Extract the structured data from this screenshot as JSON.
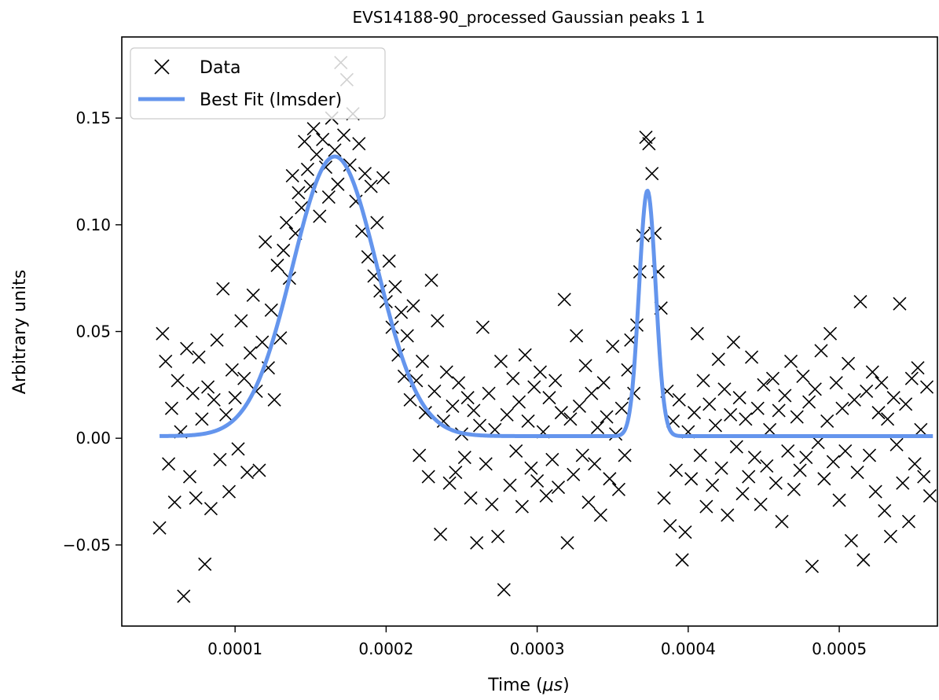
{
  "chart_data": {
    "type": "scatter",
    "title": "EVS14188-90_processed Gaussian peaks 1 1",
    "xlabel_text": "Time (",
    "xlabel_mu": "μs",
    "xlabel_close": ")",
    "ylabel": "Arbitrary units",
    "xlim": [
      2.5e-05,
      0.000565
    ],
    "ylim": [
      -0.088,
      0.188
    ],
    "x_ticks": [
      0.0001,
      0.0002,
      0.0003,
      0.0004,
      0.0005
    ],
    "x_tick_labels": [
      "0.0001",
      "0.0002",
      "0.0003",
      "0.0004",
      "0.0005"
    ],
    "y_ticks": [
      -0.05,
      0.0,
      0.05,
      0.1,
      0.15
    ],
    "y_tick_labels": [
      "−0.05",
      "0.00",
      "0.05",
      "0.10",
      "0.15"
    ],
    "grid": false,
    "legend": {
      "placement": "top-left",
      "entries": [
        {
          "label": "Data",
          "marker": "x",
          "color": "#000000"
        },
        {
          "label": "Best Fit (lmsder)",
          "marker": "line",
          "color": "#6495ED"
        }
      ]
    },
    "colors": {
      "data": "#000000",
      "fit": "#6495ED"
    },
    "fit_model": {
      "x_range": [
        5e-05,
        0.000562
      ],
      "baseline": 0.001,
      "peaks": [
        {
          "amplitude": 0.131,
          "center": 0.000166,
          "sigma": 2.8e-05
        },
        {
          "amplitude": 0.115,
          "center": 0.000373,
          "sigma": 5.5e-06
        }
      ]
    },
    "series": [
      {
        "name": "Data",
        "marker": "x",
        "points": [
          [
            5e-05,
            -0.042
          ],
          [
            5.2e-05,
            0.049
          ],
          [
            5.4e-05,
            0.036
          ],
          [
            5.6e-05,
            -0.012
          ],
          [
            5.8e-05,
            0.014
          ],
          [
            6e-05,
            -0.03
          ],
          [
            6.2e-05,
            0.027
          ],
          [
            6.4e-05,
            0.003
          ],
          [
            6.6e-05,
            -0.074
          ],
          [
            6.8e-05,
            0.042
          ],
          [
            7e-05,
            -0.018
          ],
          [
            7.2e-05,
            0.021
          ],
          [
            7.4e-05,
            -0.028
          ],
          [
            7.6e-05,
            0.038
          ],
          [
            7.8e-05,
            0.009
          ],
          [
            8e-05,
            -0.059
          ],
          [
            8.2e-05,
            0.024
          ],
          [
            8.4e-05,
            -0.033
          ],
          [
            8.6e-05,
            0.018
          ],
          [
            8.8e-05,
            0.046
          ],
          [
            9e-05,
            -0.01
          ],
          [
            9.2e-05,
            0.07
          ],
          [
            9.4e-05,
            0.011
          ],
          [
            9.6e-05,
            -0.025
          ],
          [
            9.8e-05,
            0.032
          ],
          [
            0.0001,
            0.019
          ],
          [
            0.000102,
            -0.005
          ],
          [
            0.000104,
            0.055
          ],
          [
            0.000106,
            0.028
          ],
          [
            0.000108,
            -0.016
          ],
          [
            0.00011,
            0.04
          ],
          [
            0.000112,
            0.067
          ],
          [
            0.000114,
            0.022
          ],
          [
            0.000116,
            -0.015
          ],
          [
            0.000118,
            0.045
          ],
          [
            0.00012,
            0.092
          ],
          [
            0.000122,
            0.033
          ],
          [
            0.000124,
            0.06
          ],
          [
            0.000126,
            0.018
          ],
          [
            0.000128,
            0.081
          ],
          [
            0.00013,
            0.047
          ],
          [
            0.000132,
            0.088
          ],
          [
            0.000134,
            0.101
          ],
          [
            0.000136,
            0.075
          ],
          [
            0.000138,
            0.123
          ],
          [
            0.00014,
            0.096
          ],
          [
            0.000142,
            0.115
          ],
          [
            0.000144,
            0.108
          ],
          [
            0.000146,
            0.139
          ],
          [
            0.000148,
            0.126
          ],
          [
            0.00015,
            0.118
          ],
          [
            0.000152,
            0.145
          ],
          [
            0.000154,
            0.133
          ],
          [
            0.000156,
            0.104
          ],
          [
            0.000158,
            0.14
          ],
          [
            0.00016,
            0.127
          ],
          [
            0.000162,
            0.113
          ],
          [
            0.000164,
            0.15
          ],
          [
            0.000166,
            0.135
          ],
          [
            0.000168,
            0.119
          ],
          [
            0.00017,
            0.176
          ],
          [
            0.000172,
            0.142
          ],
          [
            0.000174,
            0.168
          ],
          [
            0.000176,
            0.128
          ],
          [
            0.000178,
            0.152
          ],
          [
            0.00018,
            0.111
          ],
          [
            0.000182,
            0.138
          ],
          [
            0.000184,
            0.097
          ],
          [
            0.000186,
            0.124
          ],
          [
            0.000188,
            0.085
          ],
          [
            0.00019,
            0.118
          ],
          [
            0.000192,
            0.076
          ],
          [
            0.000194,
            0.101
          ],
          [
            0.000196,
            0.069
          ],
          [
            0.000198,
            0.122
          ],
          [
            0.0002,
            0.064
          ],
          [
            0.000202,
            0.083
          ],
          [
            0.000204,
            0.052
          ],
          [
            0.000206,
            0.071
          ],
          [
            0.000208,
            0.039
          ],
          [
            0.00021,
            0.059
          ],
          [
            0.000212,
            0.029
          ],
          [
            0.000214,
            0.048
          ],
          [
            0.000216,
            0.018
          ],
          [
            0.000218,
            0.062
          ],
          [
            0.00022,
            0.027
          ],
          [
            0.000222,
            -0.008
          ],
          [
            0.000224,
            0.036
          ],
          [
            0.000226,
            0.012
          ],
          [
            0.000228,
            -0.018
          ],
          [
            0.00023,
            0.074
          ],
          [
            0.000232,
            0.022
          ],
          [
            0.000234,
            0.055
          ],
          [
            0.000236,
            -0.045
          ],
          [
            0.000238,
            0.008
          ],
          [
            0.00024,
            0.031
          ],
          [
            0.000242,
            -0.021
          ],
          [
            0.000244,
            0.015
          ],
          [
            0.000246,
            -0.016
          ],
          [
            0.000248,
            0.026
          ],
          [
            0.00025,
            0.002
          ],
          [
            0.000252,
            -0.009
          ],
          [
            0.000254,
            0.019
          ],
          [
            0.000256,
            -0.028
          ],
          [
            0.000258,
            0.013
          ],
          [
            0.00026,
            -0.049
          ],
          [
            0.000262,
            0.006
          ],
          [
            0.000264,
            0.052
          ],
          [
            0.000266,
            -0.012
          ],
          [
            0.000268,
            0.021
          ],
          [
            0.00027,
            -0.031
          ],
          [
            0.000272,
            0.004
          ],
          [
            0.000274,
            -0.046
          ],
          [
            0.000276,
            0.036
          ],
          [
            0.000278,
            -0.071
          ],
          [
            0.00028,
            0.011
          ],
          [
            0.000282,
            -0.022
          ],
          [
            0.000284,
            0.028
          ],
          [
            0.000286,
            -0.006
          ],
          [
            0.000288,
            0.017
          ],
          [
            0.00029,
            -0.032
          ],
          [
            0.000292,
            0.039
          ],
          [
            0.000294,
            0.008
          ],
          [
            0.000296,
            -0.014
          ],
          [
            0.000298,
            0.024
          ],
          [
            0.0003,
            -0.02
          ],
          [
            0.000302,
            0.031
          ],
          [
            0.000304,
            0.003
          ],
          [
            0.000306,
            -0.027
          ],
          [
            0.000308,
            0.019
          ],
          [
            0.00031,
            -0.01
          ],
          [
            0.000312,
            0.027
          ],
          [
            0.000314,
            -0.023
          ],
          [
            0.000316,
            0.012
          ],
          [
            0.000318,
            0.065
          ],
          [
            0.00032,
            -0.049
          ],
          [
            0.000322,
            0.009
          ],
          [
            0.000324,
            -0.017
          ],
          [
            0.000326,
            0.048
          ],
          [
            0.000328,
            0.015
          ],
          [
            0.00033,
            -0.008
          ],
          [
            0.000332,
            0.034
          ],
          [
            0.000334,
            -0.03
          ],
          [
            0.000336,
            0.021
          ],
          [
            0.000338,
            -0.012
          ],
          [
            0.00034,
            0.005
          ],
          [
            0.000342,
            -0.036
          ],
          [
            0.000344,
            0.026
          ],
          [
            0.000346,
            0.01
          ],
          [
            0.000348,
            -0.019
          ],
          [
            0.00035,
            0.043
          ],
          [
            0.000352,
            0.002
          ],
          [
            0.000354,
            -0.024
          ],
          [
            0.000356,
            0.014
          ],
          [
            0.000358,
            -0.008
          ],
          [
            0.00036,
            0.032
          ],
          [
            0.000362,
            0.046
          ],
          [
            0.000364,
            0.021
          ],
          [
            0.000366,
            0.053
          ],
          [
            0.000368,
            0.078
          ],
          [
            0.00037,
            0.095
          ],
          [
            0.000372,
            0.141
          ],
          [
            0.000374,
            0.138
          ],
          [
            0.000376,
            0.124
          ],
          [
            0.000378,
            0.096
          ],
          [
            0.00038,
            0.078
          ],
          [
            0.000382,
            0.061
          ],
          [
            0.000384,
            -0.028
          ],
          [
            0.000386,
            0.022
          ],
          [
            0.000388,
            -0.041
          ],
          [
            0.00039,
            0.008
          ],
          [
            0.000392,
            -0.015
          ],
          [
            0.000394,
            0.018
          ],
          [
            0.000396,
            -0.057
          ],
          [
            0.000398,
            -0.044
          ],
          [
            0.0004,
            0.003
          ],
          [
            0.000402,
            -0.019
          ],
          [
            0.000404,
            0.012
          ],
          [
            0.000406,
            0.049
          ],
          [
            0.000408,
            -0.008
          ],
          [
            0.00041,
            0.027
          ],
          [
            0.000412,
            -0.032
          ],
          [
            0.000414,
            0.016
          ],
          [
            0.000416,
            -0.022
          ],
          [
            0.000418,
            0.006
          ],
          [
            0.00042,
            0.037
          ],
          [
            0.000422,
            -0.014
          ],
          [
            0.000424,
            0.023
          ],
          [
            0.000426,
            -0.036
          ],
          [
            0.000428,
            0.011
          ],
          [
            0.00043,
            0.045
          ],
          [
            0.000432,
            -0.004
          ],
          [
            0.000434,
            0.019
          ],
          [
            0.000436,
            -0.026
          ],
          [
            0.000438,
            0.009
          ],
          [
            0.00044,
            -0.018
          ],
          [
            0.000442,
            0.038
          ],
          [
            0.000444,
            -0.009
          ],
          [
            0.000446,
            0.014
          ],
          [
            0.000448,
            -0.031
          ],
          [
            0.00045,
            0.025
          ],
          [
            0.000452,
            -0.013
          ],
          [
            0.000454,
            0.004
          ],
          [
            0.000456,
            0.028
          ],
          [
            0.000458,
            -0.021
          ],
          [
            0.00046,
            0.013
          ],
          [
            0.000462,
            -0.039
          ],
          [
            0.000464,
            0.02
          ],
          [
            0.000466,
            -0.006
          ],
          [
            0.000468,
            0.036
          ],
          [
            0.00047,
            -0.024
          ],
          [
            0.000472,
            0.01
          ],
          [
            0.000474,
            -0.015
          ],
          [
            0.000476,
            0.029
          ],
          [
            0.000478,
            -0.009
          ],
          [
            0.00048,
            0.017
          ],
          [
            0.000482,
            -0.06
          ],
          [
            0.000484,
            0.023
          ],
          [
            0.000486,
            -0.002
          ],
          [
            0.000488,
            0.041
          ],
          [
            0.00049,
            -0.019
          ],
          [
            0.000492,
            0.008
          ],
          [
            0.000494,
            0.049
          ],
          [
            0.000496,
            -0.011
          ],
          [
            0.000498,
            0.026
          ],
          [
            0.0005,
            -0.029
          ],
          [
            0.000502,
            0.014
          ],
          [
            0.000504,
            -0.006
          ],
          [
            0.000506,
            0.035
          ],
          [
            0.000508,
            -0.048
          ],
          [
            0.00051,
            0.018
          ],
          [
            0.000512,
            -0.016
          ],
          [
            0.000514,
            0.064
          ],
          [
            0.000516,
            -0.057
          ],
          [
            0.000518,
            0.022
          ],
          [
            0.00052,
            -0.008
          ],
          [
            0.000522,
            0.031
          ],
          [
            0.000524,
            -0.025
          ],
          [
            0.000526,
            0.012
          ],
          [
            0.000528,
            0.026
          ],
          [
            0.00053,
            -0.034
          ],
          [
            0.000532,
            0.009
          ],
          [
            0.000534,
            -0.046
          ],
          [
            0.000536,
            0.019
          ],
          [
            0.000538,
            -0.003
          ],
          [
            0.00054,
            0.063
          ],
          [
            0.000542,
            -0.021
          ],
          [
            0.000544,
            0.016
          ],
          [
            0.000546,
            -0.039
          ],
          [
            0.000548,
            0.028
          ],
          [
            0.00055,
            -0.012
          ],
          [
            0.000552,
            0.033
          ],
          [
            0.000554,
            0.004
          ],
          [
            0.000556,
            -0.018
          ],
          [
            0.000558,
            0.024
          ],
          [
            0.00056,
            -0.027
          ]
        ]
      },
      {
        "name": "Best Fit (lmsder)",
        "marker": "line",
        "generated_from": "fit_model"
      }
    ]
  }
}
